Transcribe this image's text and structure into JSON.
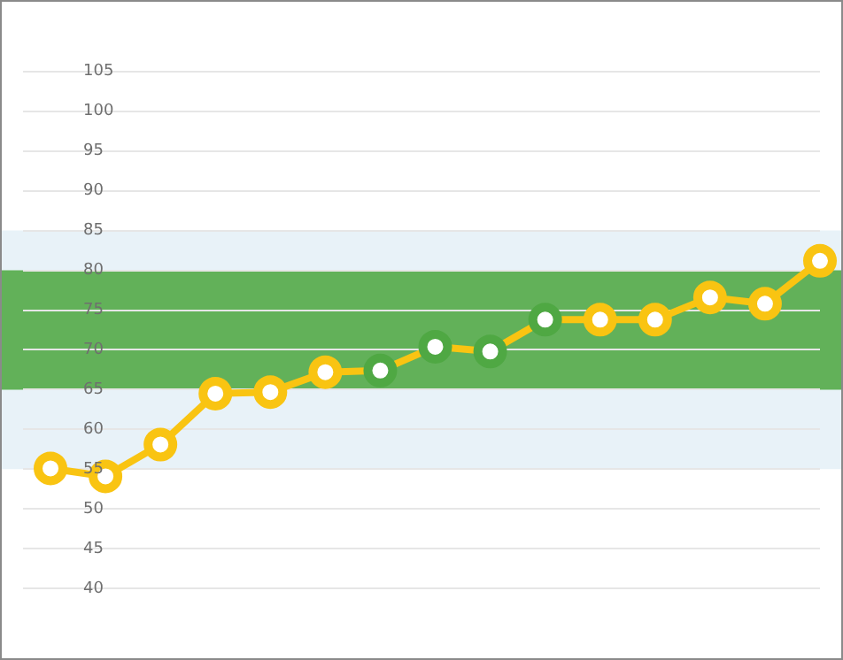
{
  "chart_data": {
    "type": "line",
    "categories": [
      null,
      null,
      null,
      null,
      null,
      null,
      null,
      null,
      null,
      null,
      null,
      null,
      null,
      null,
      null
    ],
    "series": [
      {
        "color": "#f9c412",
        "colors": [
          "#f9c412",
          "#f9c412",
          "#f9c412",
          "#f9c412",
          "#f9c412",
          "#f9c412",
          "#4fa843",
          "#4fa843",
          "#4fa843",
          "#4fa843",
          "#f9c412",
          "#f9c412",
          "#f9c412",
          "#f9c412",
          "#f9c412"
        ],
        "values": [
          55.1,
          54.1,
          58.1,
          64.5,
          64.7,
          67.2,
          67.4,
          70.4,
          69.8,
          73.8,
          73.8,
          73.8,
          76.6,
          75.8,
          81.2
        ]
      }
    ],
    "ylim": [
      40,
      105
    ],
    "yticks": [
      40,
      45,
      50,
      55,
      60,
      65,
      70,
      75,
      80,
      85,
      90,
      95,
      100,
      105
    ],
    "grid": "y",
    "marker": "circle",
    "line_style": "solid",
    "tick_labels": "y",
    "legend": false,
    "bands": [
      {
        "axis": "y",
        "from": 55,
        "to": 85,
        "color": "#e8f2f8"
      },
      {
        "axis": "y",
        "from": 65,
        "to": 80,
        "color": "#62b159"
      }
    ]
  }
}
